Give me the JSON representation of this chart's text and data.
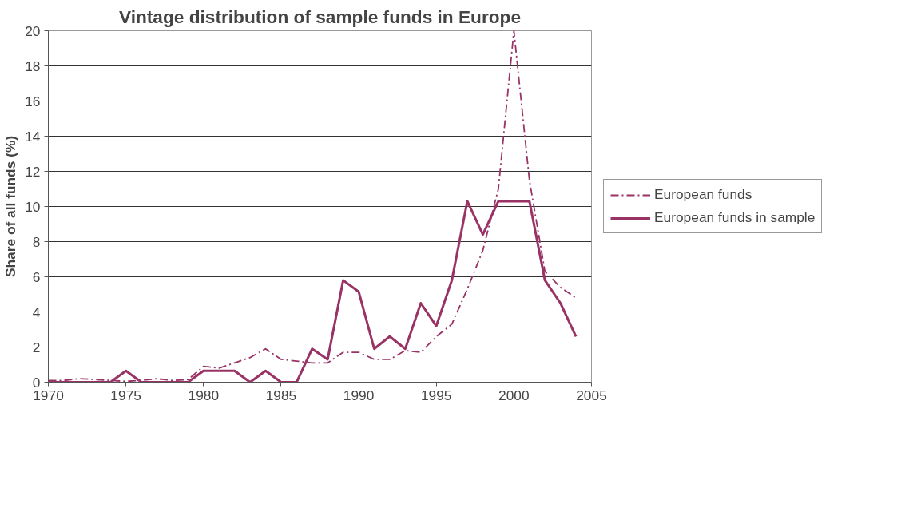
{
  "chart_data": {
    "type": "line",
    "title": "Vintage distribution of sample funds in Europe",
    "ylabel": "Share of all funds (%)",
    "x": [
      1970,
      1971,
      1972,
      1973,
      1974,
      1975,
      1976,
      1977,
      1978,
      1979,
      1980,
      1981,
      1982,
      1983,
      1984,
      1985,
      1986,
      1987,
      1988,
      1989,
      1990,
      1991,
      1992,
      1993,
      1994,
      1995,
      1996,
      1997,
      1998,
      1999,
      2000,
      2001,
      2002,
      2003,
      2004
    ],
    "series": [
      {
        "name": "European funds",
        "color": "#993366",
        "line_style": "dashed",
        "values": [
          0.1,
          0.1,
          0.2,
          0.15,
          0.1,
          0.05,
          0.1,
          0.2,
          0.1,
          0.15,
          0.9,
          0.8,
          1.1,
          1.4,
          1.9,
          1.3,
          1.2,
          1.1,
          1.1,
          1.7,
          1.7,
          1.3,
          1.3,
          1.8,
          1.7,
          2.6,
          3.3,
          5.3,
          7.5,
          11,
          20,
          11.5,
          6.3,
          5.4,
          4.8
        ]
      },
      {
        "name": "European funds in sample",
        "color": "#993366",
        "line_style": "solid",
        "values": [
          0,
          0,
          0,
          0,
          0,
          0.65,
          0,
          0,
          0,
          0,
          0.65,
          0.65,
          0.65,
          0,
          0.65,
          0,
          0,
          1.9,
          1.3,
          5.8,
          5.15,
          1.9,
          2.6,
          1.9,
          4.5,
          3.2,
          5.8,
          10.3,
          8.4,
          10.3,
          10.3,
          10.3,
          5.8,
          4.5,
          2.6
        ]
      }
    ],
    "xlim": [
      1970,
      2005
    ],
    "xticks": [
      1970,
      1975,
      1980,
      1985,
      1990,
      1995,
      2000,
      2005
    ],
    "ylim": [
      0,
      20
    ],
    "yticks": [
      0,
      2,
      4,
      6,
      8,
      10,
      12,
      14,
      16,
      18,
      20
    ],
    "grid": "y",
    "legend": "right",
    "marker": "none"
  }
}
